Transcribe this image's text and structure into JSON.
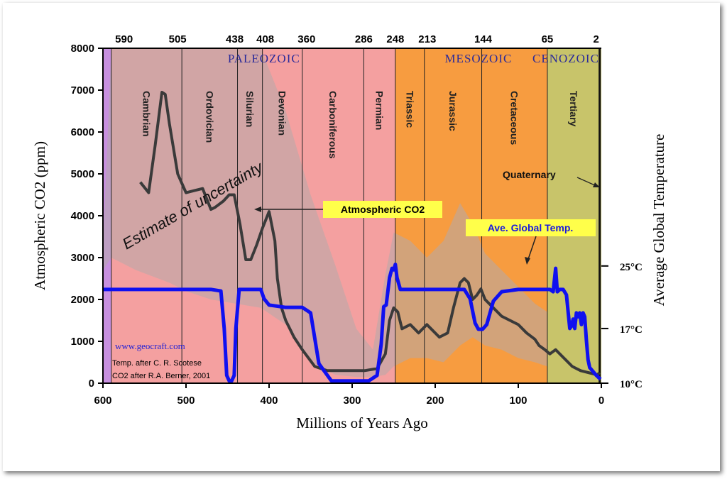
{
  "chart_data": {
    "type": "line",
    "title": "",
    "xlabel": "Millions of Years Ago",
    "ylabel": "Atmospheric CO2 (ppm)",
    "ylabel_right": "Average Global Temperature",
    "xlim": [
      600,
      0
    ],
    "ylim": [
      0,
      8000
    ],
    "x_ticks": [
      "600",
      "500",
      "400",
      "300",
      "200",
      "100",
      "0"
    ],
    "y_ticks": [
      "0",
      "1000",
      "2000",
      "3000",
      "4000",
      "5000",
      "6000",
      "7000",
      "8000"
    ],
    "right_ticks": [
      "25°C",
      "17°C",
      "10°C"
    ],
    "top_ticks": [
      "590",
      "505",
      "438",
      "408",
      "360",
      "286",
      "248",
      "213",
      "144",
      "65",
      "2"
    ],
    "eras": [
      "PALEOZOIC",
      "MESOZOIC",
      "CENOZOIC"
    ],
    "periods": [
      "Cambrian",
      "Ordovician",
      "Silurian",
      "Devonian",
      "Carboniferous",
      "Permian",
      "Triassic",
      "Jurassic",
      "Cretaceous",
      "Tertiary"
    ],
    "annotations": {
      "quaternary": "Quaternary",
      "estimate": "Estimate of uncertainty",
      "co2_label": "Atmospheric CO2",
      "temp_label": "Ave. Global Temp.",
      "site": "www.geocraft.com",
      "credit_temp": "Temp. after C. R. Scotese",
      "credit_co2": "CO2 after R.A. Berner, 2001"
    },
    "colors": {
      "paleozoic": "#f4a0a0",
      "mesozoic": "#f79c40",
      "cenozoic": "#c8c46a",
      "precambrian": "#c890e0",
      "co2_line": "#3a3a3a",
      "temp_line": "#1010f0",
      "uncertainty": "#b4aaaa",
      "label_box": "#ffff4a"
    },
    "series": [
      {
        "name": "Atmospheric CO2",
        "unit": "ppm",
        "x": [
          555,
          545,
          537,
          529,
          525,
          520,
          510,
          500,
          490,
          480,
          470,
          465,
          455,
          448,
          442,
          435,
          428,
          422,
          415,
          408,
          400,
          393,
          390,
          385,
          380,
          370,
          360,
          345,
          330,
          315,
          300,
          285,
          270,
          260,
          255,
          250,
          245,
          240,
          230,
          220,
          210,
          205,
          195,
          185,
          178,
          170,
          165,
          160,
          155,
          150,
          145,
          140,
          130,
          120,
          110,
          100,
          90,
          80,
          75,
          68,
          62,
          55,
          45,
          35,
          25,
          15,
          5,
          2
        ],
        "y": [
          4800,
          4550,
          5700,
          6950,
          6900,
          6200,
          5000,
          4550,
          4600,
          4650,
          4150,
          4200,
          4350,
          4500,
          4500,
          3800,
          2950,
          2950,
          3300,
          3700,
          4100,
          3400,
          2500,
          1800,
          1500,
          1100,
          800,
          400,
          300,
          300,
          300,
          300,
          350,
          700,
          1500,
          1800,
          1700,
          1300,
          1400,
          1200,
          1400,
          1300,
          1100,
          1200,
          1800,
          2400,
          2500,
          2400,
          2000,
          2100,
          2250,
          2000,
          1800,
          1600,
          1500,
          1400,
          1200,
          1050,
          900,
          800,
          700,
          800,
          600,
          400,
          300,
          250,
          200,
          250
        ]
      },
      {
        "name": "Ave. Global Temp.",
        "unit": "°C",
        "x": [
          600,
          560,
          520,
          490,
          470,
          458,
          454,
          451,
          448,
          445,
          442,
          440,
          436,
          432,
          425,
          415,
          410,
          406,
          400,
          380,
          360,
          350,
          340,
          325,
          315,
          305,
          298,
          290,
          280,
          270,
          265,
          262,
          259,
          255,
          252,
          250,
          248,
          246,
          242,
          238,
          225,
          200,
          180,
          165,
          158,
          152,
          148,
          143,
          138,
          130,
          120,
          100,
          80,
          62,
          58,
          55,
          53,
          50,
          46,
          42,
          38,
          36,
          34,
          32,
          30,
          28,
          26,
          24,
          22,
          20,
          18,
          16,
          14,
          10,
          6,
          3,
          1
        ],
        "y": [
          22,
          22,
          22,
          22,
          22,
          21.8,
          17,
          11,
          10.3,
          10.3,
          11,
          17,
          22,
          22,
          22,
          22,
          22,
          20.8,
          20,
          19.7,
          19.7,
          19,
          12.5,
          10.3,
          10.3,
          10.3,
          10.3,
          10.3,
          10.3,
          11,
          15,
          19.8,
          20,
          23.5,
          24.7,
          24.5,
          25.2,
          23.5,
          22,
          22,
          22,
          22,
          22,
          22,
          20.8,
          17.7,
          16.9,
          16.9,
          17.5,
          20.5,
          21.7,
          22,
          22,
          22,
          21.7,
          24.7,
          21.7,
          22,
          22,
          21.3,
          17,
          17.3,
          18.2,
          17,
          19,
          18.5,
          19,
          17.5,
          19,
          18.5,
          15.5,
          13,
          12,
          11.5,
          11,
          10.7,
          10.5
        ]
      }
    ],
    "uncertainty_band": {
      "x": [
        600,
        590,
        560,
        520,
        500,
        470,
        440,
        410,
        380,
        350,
        320,
        295,
        275,
        260,
        250,
        230,
        210,
        190,
        170,
        155,
        140,
        120,
        100,
        80,
        65
      ],
      "upper": [
        3200,
        8000,
        8000,
        8000,
        8000,
        8000,
        8000,
        8000,
        6500,
        4500,
        2800,
        1300,
        800,
        2600,
        3600,
        3400,
        3000,
        3400,
        4300,
        3800,
        3100,
        2700,
        2300,
        1900,
        1700
      ],
      "lower": [
        2700,
        3000,
        2700,
        2400,
        2200,
        2000,
        1900,
        1800,
        1400,
        500,
        200,
        150,
        150,
        200,
        400,
        600,
        600,
        500,
        900,
        1100,
        900,
        800,
        600,
        500,
        400
      ]
    }
  }
}
